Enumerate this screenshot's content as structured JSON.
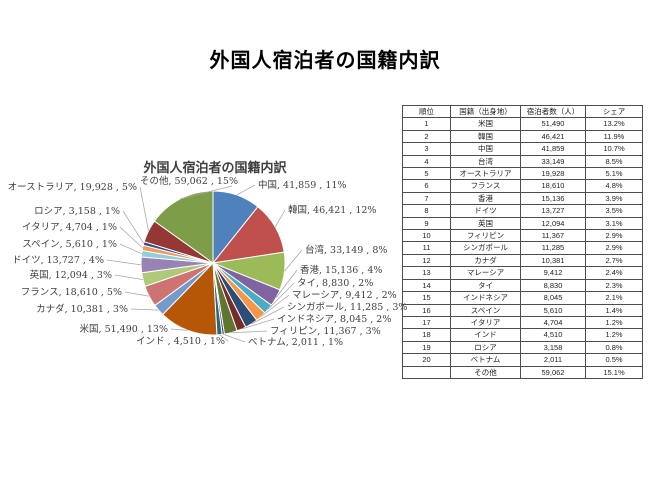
{
  "page": {
    "title": "外国人宿泊者の国籍内訳"
  },
  "chart_data": {
    "type": "pie",
    "title": "外国人宿泊者の国籍内訳",
    "legend_position": "none",
    "labels_style": "outside-with-leader-lines",
    "slices": [
      {
        "name": "中国",
        "value": 41859,
        "value_text": "41,859",
        "pct_label": "11%",
        "label_text": "中国, 41,859 , 11%",
        "color": "#4F81BD"
      },
      {
        "name": "韓国",
        "value": 46421,
        "value_text": "46,421",
        "pct_label": "12%",
        "label_text": "韓国, 46,421 , 12%",
        "color": "#C0504D"
      },
      {
        "name": "台湾",
        "value": 33149,
        "value_text": "33,149",
        "pct_label": "8%",
        "label_text": "台湾, 33,149 , 8%",
        "color": "#9BBB59"
      },
      {
        "name": "香港",
        "value": 15136,
        "value_text": "15,136",
        "pct_label": "4%",
        "label_text": "香港, 15,136 , 4%",
        "color": "#8064A2"
      },
      {
        "name": "タイ",
        "value": 8830,
        "value_text": "8,830",
        "pct_label": "2%",
        "label_text": "タイ, 8,830 , 2%",
        "color": "#4BACC6"
      },
      {
        "name": "マレーシア",
        "value": 9412,
        "value_text": "9,412",
        "pct_label": "2%",
        "label_text": "マレーシア, 9,412 , 2%",
        "color": "#F79646"
      },
      {
        "name": "シンガポール",
        "value": 11285,
        "value_text": "11,285",
        "pct_label": "3%",
        "label_text": "シンガポール, 11,285 , 3%",
        "color": "#2C4D75"
      },
      {
        "name": "インドネシア",
        "value": 8045,
        "value_text": "8,045",
        "pct_label": "2%",
        "label_text": "インドネシア, 8,045 , 2%",
        "color": "#772C2A"
      },
      {
        "name": "フィリピン",
        "value": 11367,
        "value_text": "11,367",
        "pct_label": "3%",
        "label_text": "フィリピン, 11,367 , 3%",
        "color": "#5F7530"
      },
      {
        "name": "ベトナム",
        "value": 2011,
        "value_text": "2,011",
        "pct_label": "1%",
        "label_text": "ベトナム, 2,011 , 1%",
        "color": "#4D3B62"
      },
      {
        "name": "インド",
        "value": 4510,
        "value_text": "4,510",
        "pct_label": "1%",
        "label_text": "インド , 4,510 , 1%",
        "color": "#276A7C"
      },
      {
        "name": "米国",
        "value": 51490,
        "value_text": "51,490",
        "pct_label": "13%",
        "label_text": "米国, 51,490 , 13%",
        "color": "#B65708"
      },
      {
        "name": "カナダ",
        "value": 10381,
        "value_text": "10,381",
        "pct_label": "3%",
        "label_text": "カナダ, 10,381 , 3%",
        "color": "#729ACA"
      },
      {
        "name": "フランス",
        "value": 18610,
        "value_text": "18,610",
        "pct_label": "5%",
        "label_text": "フランス, 18,610 , 5%",
        "color": "#CD7371"
      },
      {
        "name": "英国",
        "value": 12094,
        "value_text": "12,094",
        "pct_label": "3%",
        "label_text": "英国, 12,094 , 3%",
        "color": "#AFC97A"
      },
      {
        "name": "ドイツ",
        "value": 13727,
        "value_text": "13,727",
        "pct_label": "4%",
        "label_text": "ドイツ, 13,727 , 4%",
        "color": "#9983B5"
      },
      {
        "name": "スペイン",
        "value": 5610,
        "value_text": "5,610",
        "pct_label": "1%",
        "label_text": "スペイン, 5,610 , 1%",
        "color": "#92CDDC"
      },
      {
        "name": "イタリア",
        "value": 4704,
        "value_text": "4,704",
        "pct_label": "1%",
        "label_text": "イタリア, 4,704 , 1%",
        "color": "#F19A5C"
      },
      {
        "name": "ロシア",
        "value": 3158,
        "value_text": "3,158",
        "pct_label": "1%",
        "label_text": "ロシア, 3,158 , 1%",
        "color": "#31518C"
      },
      {
        "name": "オーストラリア",
        "value": 19928,
        "value_text": "19,928",
        "pct_label": "5%",
        "label_text": "オーストラリア, 19,928 , 5%",
        "color": "#943735"
      },
      {
        "name": "その他",
        "value": 59062,
        "value_text": "59,062",
        "pct_label": "15%",
        "label_text": "その他, 59,062 , 15%",
        "color": "#7E9D49"
      }
    ]
  },
  "table": {
    "headers": [
      "順位",
      "国籍（出身地）",
      "宿泊者数（人）",
      "シェア"
    ],
    "rows": [
      [
        "1",
        "米国",
        "51,490",
        "13.2%"
      ],
      [
        "2",
        "韓国",
        "46,421",
        "11.9%"
      ],
      [
        "3",
        "中国",
        "41,859",
        "10.7%"
      ],
      [
        "4",
        "台湾",
        "33,149",
        "8.5%"
      ],
      [
        "5",
        "オーストラリア",
        "19,928",
        "5.1%"
      ],
      [
        "6",
        "フランス",
        "18,610",
        "4.8%"
      ],
      [
        "7",
        "香港",
        "15,136",
        "3.9%"
      ],
      [
        "8",
        "ドイツ",
        "13,727",
        "3.5%"
      ],
      [
        "9",
        "英国",
        "12,094",
        "3.1%"
      ],
      [
        "10",
        "フィリピン",
        "11,367",
        "2.9%"
      ],
      [
        "11",
        "シンガポール",
        "11,285",
        "2.9%"
      ],
      [
        "12",
        "カナダ",
        "10,381",
        "2.7%"
      ],
      [
        "13",
        "マレーシア",
        "9,412",
        "2.4%"
      ],
      [
        "14",
        "タイ",
        "8,830",
        "2.3%"
      ],
      [
        "15",
        "インドネシア",
        "8,045",
        "2.1%"
      ],
      [
        "16",
        "スペイン",
        "5,610",
        "1.4%"
      ],
      [
        "17",
        "イタリア",
        "4,704",
        "1.2%"
      ],
      [
        "18",
        "インド",
        "4,510",
        "1.2%"
      ],
      [
        "19",
        "ロシア",
        "3,158",
        "0.8%"
      ],
      [
        "20",
        "ベトナム",
        "2,011",
        "0.5%"
      ],
      [
        "",
        "その他",
        "59,062",
        "15.1%"
      ]
    ]
  }
}
